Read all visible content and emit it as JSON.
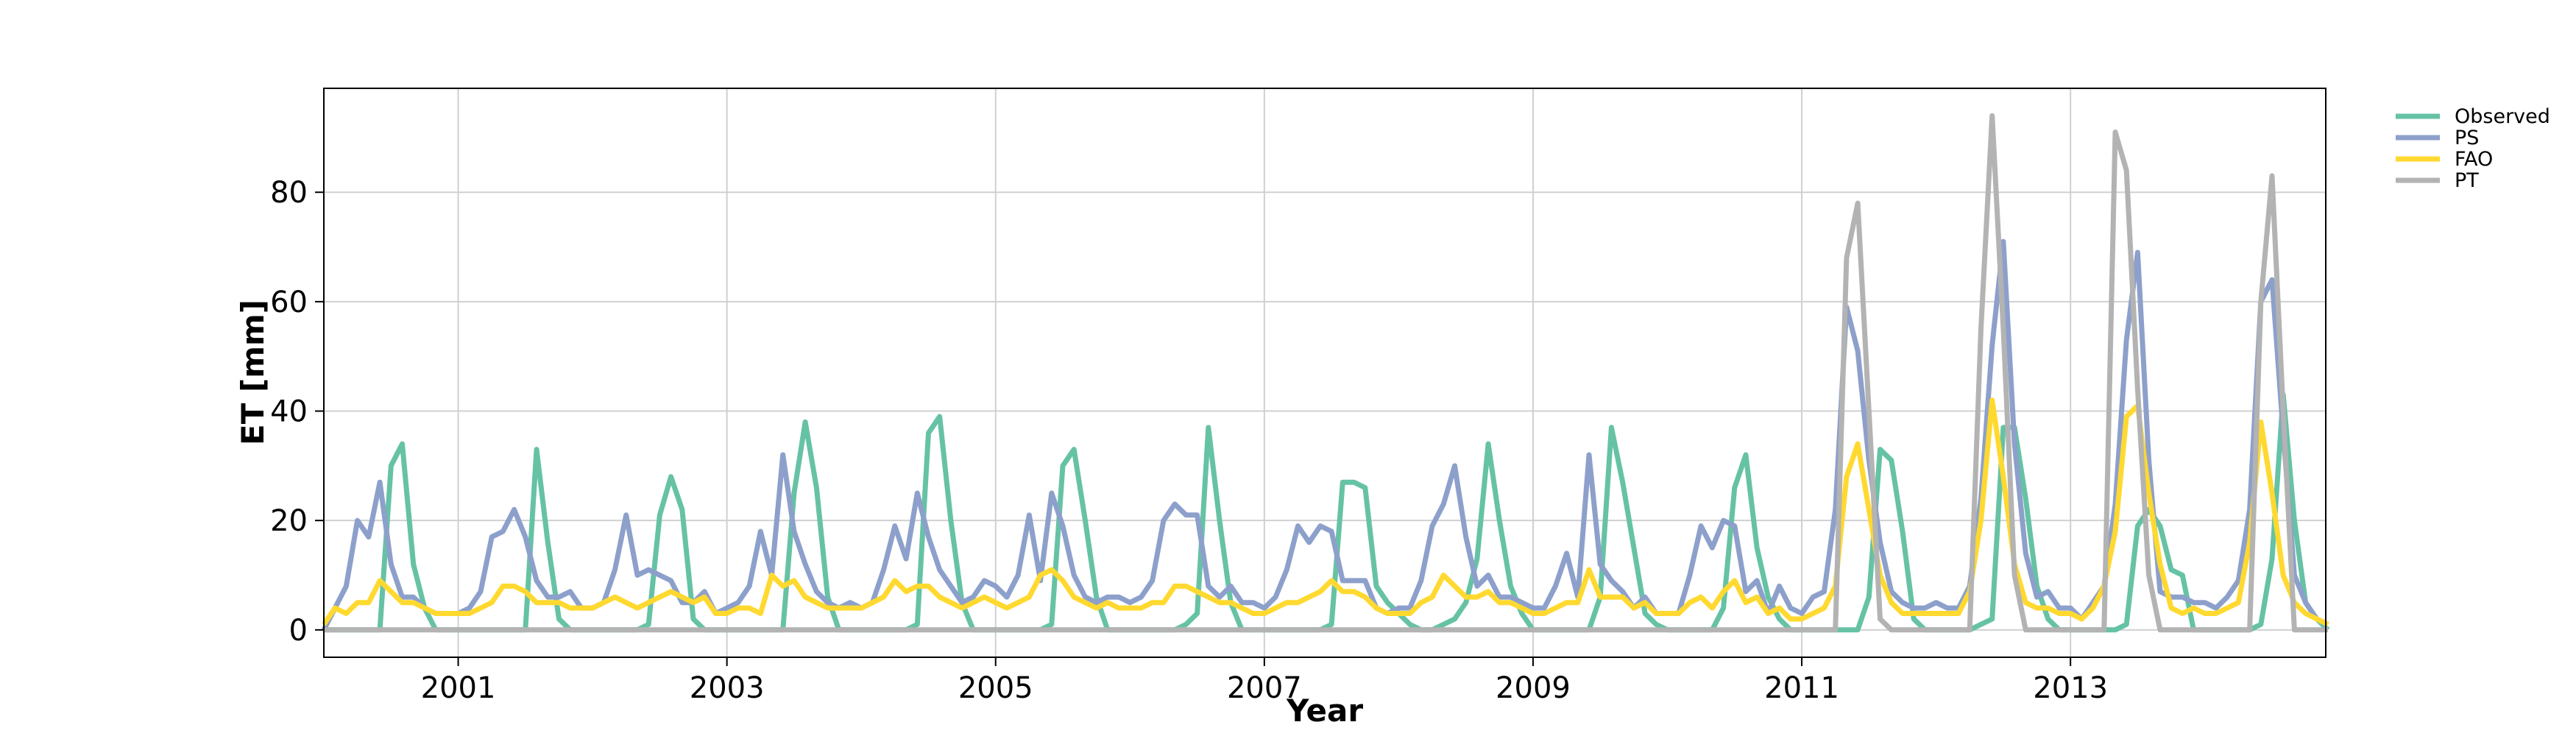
{
  "chart_data": {
    "type": "line",
    "title": "",
    "xlabel": "Year",
    "ylabel": "ET [mm]",
    "xlim": [
      2000.0,
      2014.9
    ],
    "ylim": [
      -5,
      99
    ],
    "x_ticks": [
      2001,
      2003,
      2005,
      2007,
      2009,
      2011,
      2013
    ],
    "y_ticks": [
      0,
      20,
      40,
      60,
      80
    ],
    "grid": true,
    "legend_position": "outside-top-right",
    "x_start_year": 2000.0,
    "x_step": 0.0833333,
    "series": [
      {
        "name": "Observed",
        "color": "#66c2a5",
        "values": [
          0,
          0,
          0,
          0,
          0,
          0,
          30,
          34,
          12,
          4,
          0,
          0,
          0,
          0,
          0,
          0,
          0,
          0,
          0,
          33,
          16,
          2,
          0,
          0,
          0,
          0,
          0,
          0,
          0,
          1,
          21,
          28,
          22,
          2,
          0,
          0,
          0,
          0,
          0,
          0,
          0,
          0,
          25,
          38,
          26,
          6,
          0,
          0,
          0,
          0,
          0,
          0,
          0,
          1,
          36,
          39,
          20,
          5,
          0,
          0,
          0,
          0,
          0,
          0,
          0,
          1,
          30,
          33,
          20,
          6,
          0,
          0,
          0,
          0,
          0,
          0,
          0,
          1,
          3,
          37,
          20,
          5,
          0,
          0,
          0,
          0,
          0,
          0,
          0,
          0,
          1,
          27,
          27,
          26,
          8,
          5,
          3,
          1,
          0,
          0,
          1,
          2,
          5,
          13,
          34,
          20,
          8,
          3,
          0,
          0,
          0,
          0,
          0,
          0,
          6,
          37,
          27,
          15,
          3,
          1,
          0,
          0,
          0,
          0,
          0,
          4,
          26,
          32,
          15,
          6,
          2,
          0,
          0,
          0,
          0,
          0,
          0,
          0,
          6,
          33,
          31,
          18,
          2,
          0,
          0,
          0,
          0,
          0,
          1,
          2,
          37,
          37,
          24,
          8,
          2,
          0,
          0,
          0,
          0,
          0,
          0,
          1,
          19,
          22,
          19,
          11,
          10,
          0,
          0,
          0,
          0,
          0,
          0,
          1,
          13,
          43,
          20,
          5,
          2,
          0
        ]
      },
      {
        "name": "PS",
        "color": "#8da0cb",
        "values": [
          0,
          4,
          8,
          20,
          17,
          27,
          12,
          6,
          6,
          4,
          3,
          3,
          3,
          4,
          7,
          17,
          18,
          22,
          17,
          9,
          6,
          6,
          7,
          4,
          4,
          5,
          11,
          21,
          10,
          11,
          10,
          9,
          5,
          5,
          7,
          3,
          4,
          5,
          8,
          18,
          10,
          32,
          18,
          12,
          7,
          5,
          4,
          5,
          4,
          5,
          11,
          19,
          13,
          25,
          17,
          11,
          8,
          5,
          6,
          9,
          8,
          6,
          10,
          21,
          9,
          25,
          19,
          10,
          6,
          5,
          6,
          6,
          5,
          6,
          9,
          20,
          23,
          21,
          21,
          8,
          6,
          8,
          5,
          5,
          4,
          6,
          11,
          19,
          16,
          19,
          18,
          9,
          9,
          9,
          4,
          3,
          4,
          4,
          9,
          19,
          23,
          30,
          17,
          8,
          10,
          6,
          6,
          5,
          4,
          4,
          8,
          14,
          6,
          32,
          12,
          9,
          7,
          4,
          6,
          3,
          3,
          3,
          10,
          19,
          15,
          20,
          19,
          7,
          9,
          3,
          8,
          4,
          3,
          6,
          7,
          22,
          59,
          51,
          31,
          16,
          7,
          5,
          4,
          4,
          5,
          4,
          4,
          8,
          24,
          52,
          71,
          34,
          14,
          6,
          7,
          4,
          4,
          2,
          5,
          8,
          23,
          53,
          69,
          31,
          7,
          6,
          6,
          5,
          5,
          4,
          6,
          9,
          22,
          60,
          64,
          36,
          10,
          5,
          2,
          1
        ]
      },
      {
        "name": "FAO",
        "color": "#ffd92f",
        "values": [
          1,
          4,
          3,
          5,
          5,
          9,
          7,
          5,
          5,
          4,
          3,
          3,
          3,
          3,
          4,
          5,
          8,
          8,
          7,
          5,
          5,
          5,
          4,
          4,
          4,
          5,
          6,
          5,
          4,
          5,
          6,
          7,
          6,
          5,
          6,
          3,
          3,
          4,
          4,
          3,
          10,
          8,
          9,
          6,
          5,
          4,
          4,
          4,
          4,
          5,
          6,
          9,
          7,
          8,
          8,
          6,
          5,
          4,
          5,
          6,
          5,
          4,
          5,
          6,
          10,
          11,
          9,
          6,
          5,
          4,
          5,
          4,
          4,
          4,
          5,
          5,
          8,
          8,
          7,
          6,
          5,
          5,
          4,
          3,
          3,
          4,
          5,
          5,
          6,
          7,
          9,
          7,
          7,
          6,
          4,
          3,
          3,
          3,
          5,
          6,
          10,
          8,
          6,
          6,
          7,
          5,
          5,
          4,
          3,
          3,
          4,
          5,
          5,
          11,
          6,
          6,
          6,
          4,
          5,
          3,
          3,
          3,
          5,
          6,
          4,
          7,
          9,
          5,
          6,
          3,
          4,
          2,
          2,
          3,
          4,
          8,
          28,
          34,
          22,
          10,
          5,
          3,
          3,
          3,
          3,
          3,
          3,
          7,
          20,
          42,
          28,
          12,
          5,
          4,
          4,
          3,
          3,
          2,
          4,
          8,
          18,
          39,
          41,
          25,
          12,
          4,
          3,
          4,
          3,
          3,
          4,
          5,
          16,
          38,
          25,
          10,
          5,
          3,
          2,
          1
        ]
      },
      {
        "name": "PT",
        "color": "#b3b3b3",
        "values": [
          0,
          0,
          0,
          0,
          0,
          0,
          0,
          0,
          0,
          0,
          0,
          0,
          0,
          0,
          0,
          0,
          0,
          0,
          0,
          0,
          0,
          0,
          0,
          0,
          0,
          0,
          0,
          0,
          0,
          0,
          0,
          0,
          0,
          0,
          0,
          0,
          0,
          0,
          0,
          0,
          0,
          0,
          0,
          0,
          0,
          0,
          0,
          0,
          0,
          0,
          0,
          0,
          0,
          0,
          0,
          0,
          0,
          0,
          0,
          0,
          0,
          0,
          0,
          0,
          0,
          0,
          0,
          0,
          0,
          0,
          0,
          0,
          0,
          0,
          0,
          0,
          0,
          0,
          0,
          0,
          0,
          0,
          0,
          0,
          0,
          0,
          0,
          0,
          0,
          0,
          0,
          0,
          0,
          0,
          0,
          0,
          0,
          0,
          0,
          0,
          0,
          0,
          0,
          0,
          0,
          0,
          0,
          0,
          0,
          0,
          0,
          0,
          0,
          0,
          0,
          0,
          0,
          0,
          0,
          0,
          0,
          0,
          0,
          0,
          0,
          0,
          0,
          0,
          0,
          0,
          0,
          0,
          0,
          0,
          0,
          0,
          68,
          78,
          40,
          2,
          0,
          0,
          0,
          0,
          0,
          0,
          0,
          0,
          55,
          94,
          55,
          10,
          0,
          0,
          0,
          0,
          0,
          0,
          0,
          0,
          91,
          84,
          44,
          10,
          0,
          0,
          0,
          0,
          0,
          0,
          0,
          0,
          0,
          60,
          83,
          40,
          0,
          0,
          0,
          0
        ]
      }
    ]
  }
}
